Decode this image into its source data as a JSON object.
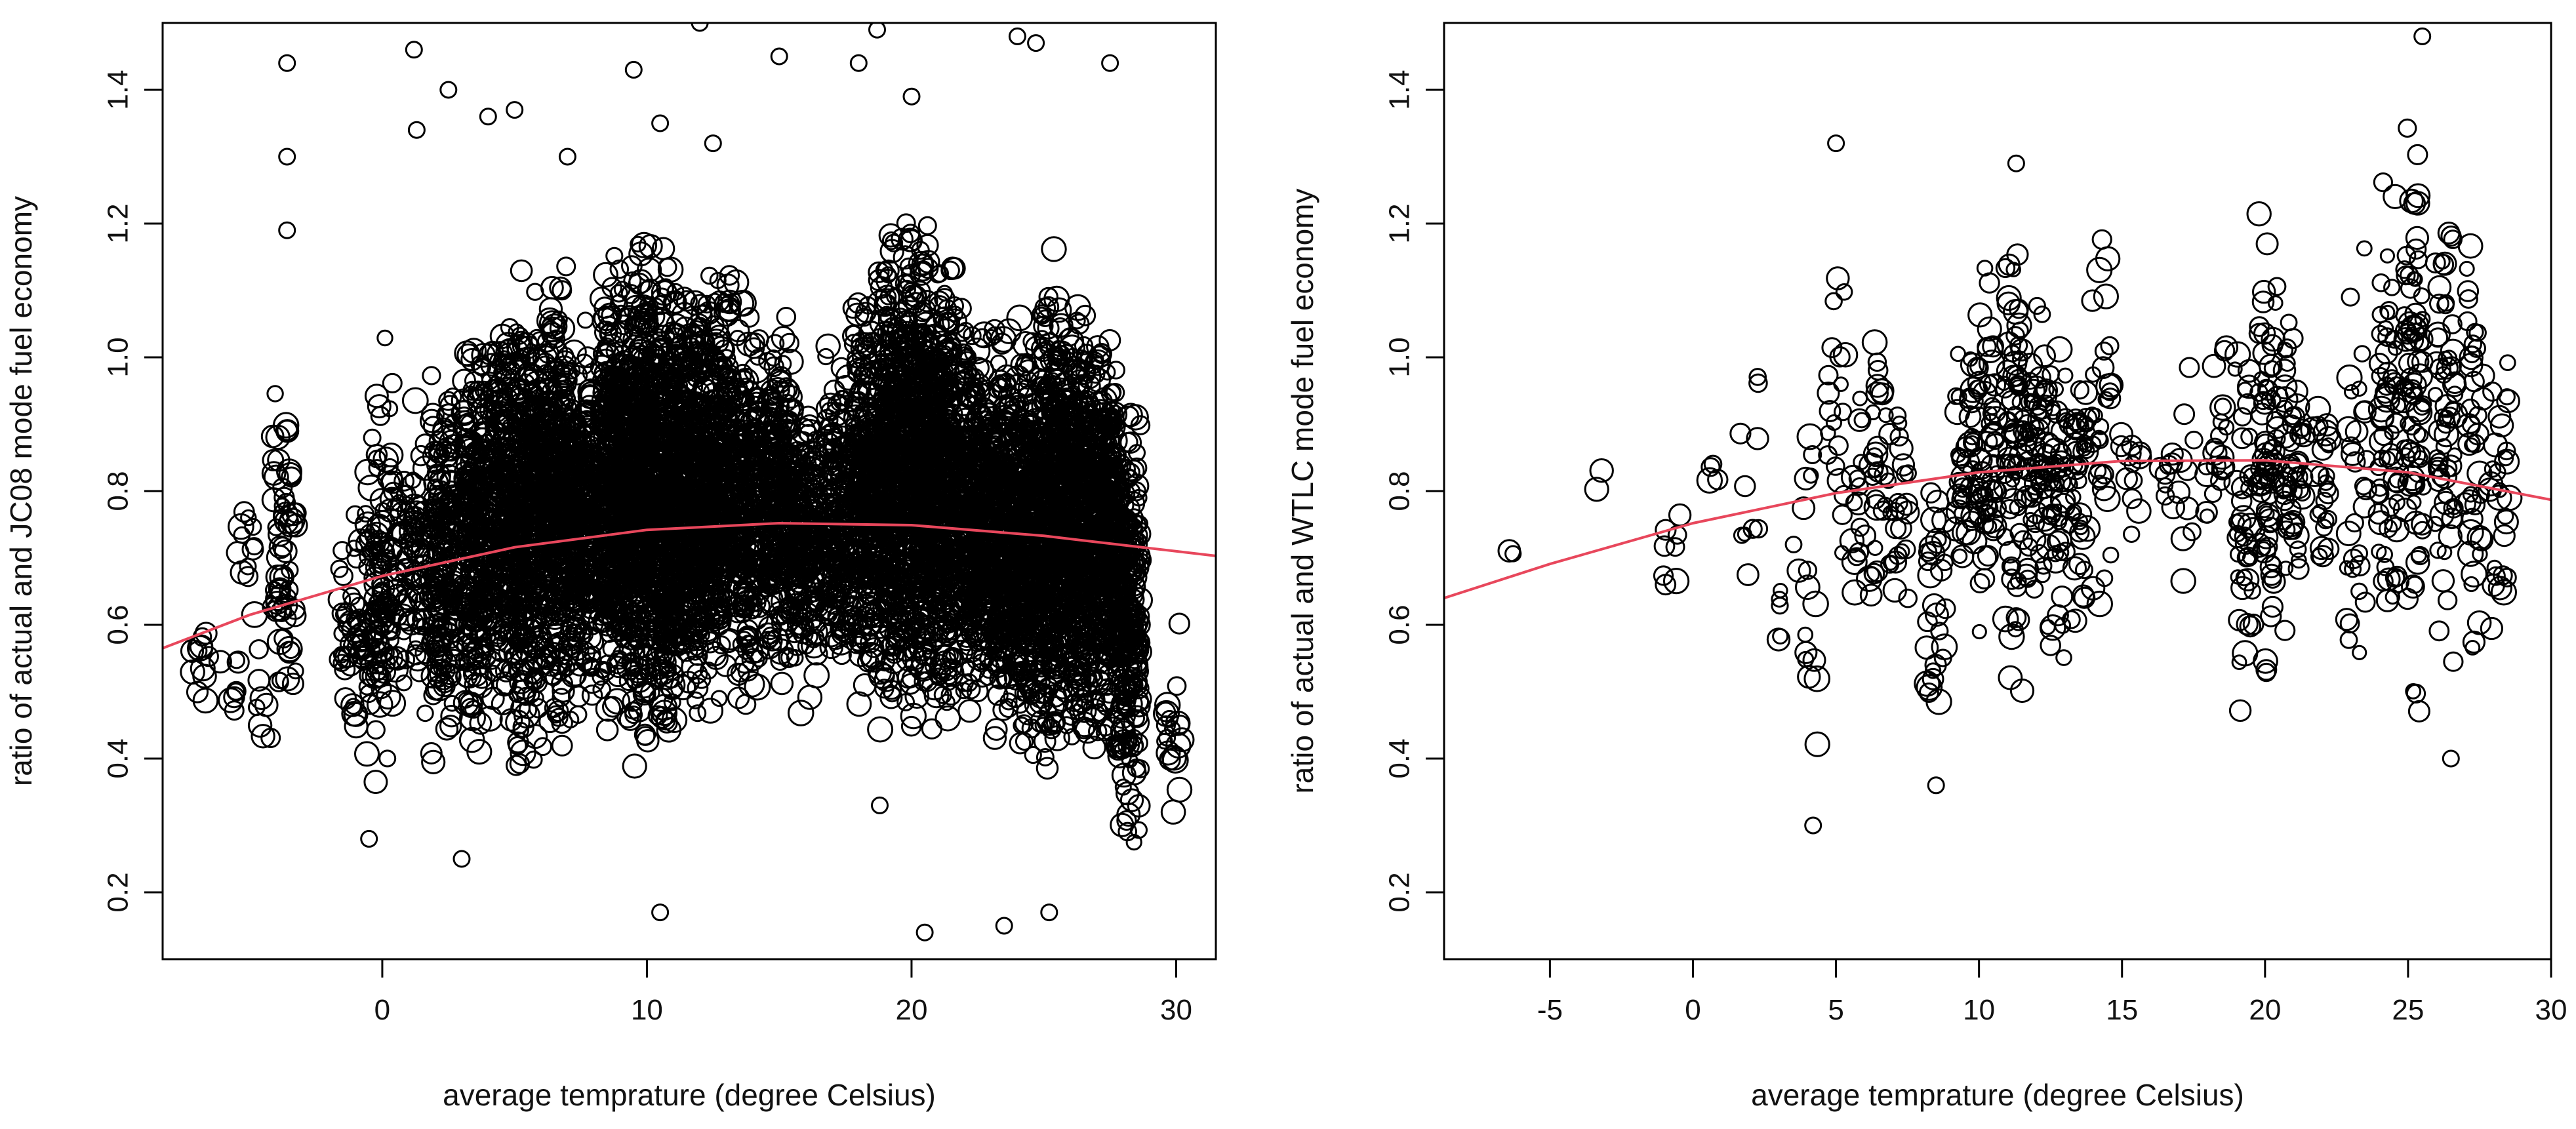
{
  "chart_data": [
    {
      "type": "scatter",
      "title": "",
      "xlabel": "average temprature (degree Celsius)",
      "ylabel": "ratio of actual and JC08 mode fuel economy",
      "xlim": [
        -8.3,
        31.5
      ],
      "ylim": [
        0.1,
        1.5
      ],
      "xticks": [
        0,
        10,
        20,
        30
      ],
      "xtick_labels": [
        "0",
        "10",
        "20",
        "30"
      ],
      "yticks": [
        0.2,
        0.4,
        0.6,
        0.8,
        1.0,
        1.2,
        1.4
      ],
      "ytick_labels": [
        "0.2",
        "0.4",
        "0.6",
        "0.8",
        "1.0",
        "1.2",
        "1.4"
      ],
      "grid": false,
      "legend": "none",
      "point_style": "open circles, size proportional to weight",
      "point_color": "#000000",
      "line_color": "#e8475c",
      "point_clusters": [
        {
          "x": -6.8,
          "y_range": [
            0.45,
            0.64
          ],
          "n": 12
        },
        {
          "x": -5.8,
          "y_range": [
            0.38,
            0.62
          ],
          "n": 8
        },
        {
          "x": -5.2,
          "y_range": [
            0.45,
            0.96
          ],
          "n": 12
        },
        {
          "x": -4.3,
          "y_range": [
            0.38,
            0.65
          ],
          "n": 10
        },
        {
          "x": -3.7,
          "y_range": [
            0.38,
            1.05
          ],
          "n": 60
        },
        {
          "x": -1.2,
          "y_range": [
            0.28,
            0.82
          ],
          "n": 40
        },
        {
          "x": -0.3,
          "y_range": [
            0.3,
            0.95
          ],
          "n": 60
        },
        {
          "x": 0.2,
          "y_range": [
            0.3,
            1.12
          ],
          "n": 80
        },
        {
          "x": 1.2,
          "y_range": [
            0.4,
            1.0
          ],
          "n": 80
        },
        {
          "x": 2.3,
          "y_range": [
            0.35,
            1.05
          ],
          "n": 200
        },
        {
          "x": 3.5,
          "y_range": [
            0.35,
            1.1
          ],
          "n": 260
        },
        {
          "x": 4.5,
          "y_range": [
            0.4,
            1.15
          ],
          "n": 260
        },
        {
          "x": 5.5,
          "y_range": [
            0.3,
            1.2
          ],
          "n": 340
        },
        {
          "x": 6.5,
          "y_range": [
            0.35,
            1.2
          ],
          "n": 340
        },
        {
          "x": 7.5,
          "y_range": [
            0.4,
            1.1
          ],
          "n": 300
        },
        {
          "x": 8.7,
          "y_range": [
            0.4,
            1.2
          ],
          "n": 420
        },
        {
          "x": 9.7,
          "y_range": [
            0.35,
            1.25
          ],
          "n": 460
        },
        {
          "x": 10.7,
          "y_range": [
            0.35,
            1.25
          ],
          "n": 460
        },
        {
          "x": 11.7,
          "y_range": [
            0.4,
            1.2
          ],
          "n": 380
        },
        {
          "x": 12.7,
          "y_range": [
            0.4,
            1.2
          ],
          "n": 340
        },
        {
          "x": 13.8,
          "y_range": [
            0.42,
            1.15
          ],
          "n": 280
        },
        {
          "x": 15.0,
          "y_range": [
            0.45,
            1.1
          ],
          "n": 260
        },
        {
          "x": 16.0,
          "y_range": [
            0.45,
            1.0
          ],
          "n": 200
        },
        {
          "x": 17.2,
          "y_range": [
            0.45,
            1.05
          ],
          "n": 200
        },
        {
          "x": 18.2,
          "y_range": [
            0.42,
            1.2
          ],
          "n": 320
        },
        {
          "x": 19.2,
          "y_range": [
            0.4,
            1.25
          ],
          "n": 380
        },
        {
          "x": 20.2,
          "y_range": [
            0.35,
            1.3
          ],
          "n": 460
        },
        {
          "x": 21.2,
          "y_range": [
            0.38,
            1.2
          ],
          "n": 400
        },
        {
          "x": 22.3,
          "y_range": [
            0.4,
            1.15
          ],
          "n": 340
        },
        {
          "x": 23.3,
          "y_range": [
            0.38,
            1.1
          ],
          "n": 340
        },
        {
          "x": 24.3,
          "y_range": [
            0.35,
            1.1
          ],
          "n": 380
        },
        {
          "x": 25.3,
          "y_range": [
            0.32,
            1.2
          ],
          "n": 420
        },
        {
          "x": 26.3,
          "y_range": [
            0.35,
            1.15
          ],
          "n": 400
        },
        {
          "x": 27.3,
          "y_range": [
            0.35,
            1.1
          ],
          "n": 380
        },
        {
          "x": 28.2,
          "y_range": [
            0.22,
            1.0
          ],
          "n": 260
        },
        {
          "x": 29.8,
          "y_range": [
            0.22,
            0.66
          ],
          "n": 20
        }
      ],
      "outliers": [
        {
          "x": -3.6,
          "y": 1.44
        },
        {
          "x": -3.6,
          "y": 1.3
        },
        {
          "x": -3.6,
          "y": 1.19
        },
        {
          "x": 1.2,
          "y": 1.46
        },
        {
          "x": 1.3,
          "y": 1.34
        },
        {
          "x": 2.5,
          "y": 1.4
        },
        {
          "x": 4.0,
          "y": 1.36
        },
        {
          "x": 5.0,
          "y": 1.37
        },
        {
          "x": 7.0,
          "y": 1.3
        },
        {
          "x": 9.5,
          "y": 1.43
        },
        {
          "x": 10.5,
          "y": 1.35
        },
        {
          "x": 12.0,
          "y": 1.5
        },
        {
          "x": 12.5,
          "y": 1.32
        },
        {
          "x": 15.0,
          "y": 1.45
        },
        {
          "x": 18.0,
          "y": 1.44
        },
        {
          "x": 18.7,
          "y": 1.49
        },
        {
          "x": 20.0,
          "y": 1.39
        },
        {
          "x": 24.0,
          "y": 1.48
        },
        {
          "x": 24.7,
          "y": 1.47
        },
        {
          "x": 27.5,
          "y": 1.44
        },
        {
          "x": 10.5,
          "y": 0.17
        },
        {
          "x": 20.5,
          "y": 0.14
        },
        {
          "x": 23.5,
          "y": 0.15
        },
        {
          "x": 25.2,
          "y": 0.17
        },
        {
          "x": -0.5,
          "y": 0.28
        },
        {
          "x": 3.0,
          "y": 0.25
        },
        {
          "x": 18.8,
          "y": 0.33
        }
      ],
      "trend_line": {
        "label": "",
        "x": [
          -8.3,
          -5,
          0,
          5,
          10,
          15,
          20,
          25,
          31.5
        ],
        "y": [
          0.565,
          0.615,
          0.673,
          0.716,
          0.742,
          0.752,
          0.749,
          0.733,
          0.703
        ]
      }
    },
    {
      "type": "scatter",
      "title": "",
      "xlabel": "average temprature (degree Celsius)",
      "ylabel": "ratio of actual and WTLC mode fuel economy",
      "xlim": [
        -8.7,
        30.0
      ],
      "ylim": [
        0.1,
        1.5
      ],
      "xticks": [
        -5,
        0,
        5,
        10,
        15,
        20,
        25,
        30
      ],
      "xtick_labels": [
        "-5",
        "0",
        "5",
        "10",
        "15",
        "20",
        "25",
        "30"
      ],
      "yticks": [
        0.2,
        0.4,
        0.6,
        0.8,
        1.0,
        1.2,
        1.4
      ],
      "ytick_labels": [
        "0.2",
        "0.4",
        "0.6",
        "0.8",
        "1.0",
        "1.2",
        "1.4"
      ],
      "grid": false,
      "legend": "none",
      "point_style": "open circles, size proportional to weight",
      "point_color": "#000000",
      "line_color": "#e8475c",
      "point_clusters": [
        {
          "x": -6.5,
          "y_range": [
            0.7,
            0.72
          ],
          "n": 2
        },
        {
          "x": -3.5,
          "y_range": [
            0.79,
            0.85
          ],
          "n": 2
        },
        {
          "x": -0.7,
          "y_range": [
            0.45,
            0.83
          ],
          "n": 8
        },
        {
          "x": 0.7,
          "y_range": [
            0.79,
            0.86
          ],
          "n": 4
        },
        {
          "x": 2.0,
          "y_range": [
            0.55,
            1.12
          ],
          "n": 10
        },
        {
          "x": 3.2,
          "y_range": [
            0.48,
            0.8
          ],
          "n": 6
        },
        {
          "x": 4.0,
          "y_range": [
            0.3,
            0.99
          ],
          "n": 16
        },
        {
          "x": 5.0,
          "y_range": [
            0.6,
            1.32
          ],
          "n": 20
        },
        {
          "x": 5.8,
          "y_range": [
            0.55,
            1.0
          ],
          "n": 16
        },
        {
          "x": 6.5,
          "y_range": [
            0.48,
            1.18
          ],
          "n": 28
        },
        {
          "x": 7.2,
          "y_range": [
            0.5,
            1.05
          ],
          "n": 24
        },
        {
          "x": 8.5,
          "y_range": [
            0.36,
            0.95
          ],
          "n": 28
        },
        {
          "x": 9.5,
          "y_range": [
            0.55,
            1.1
          ],
          "n": 40
        },
        {
          "x": 10.3,
          "y_range": [
            0.5,
            1.2
          ],
          "n": 60
        },
        {
          "x": 11.2,
          "y_range": [
            0.4,
            1.29
          ],
          "n": 70
        },
        {
          "x": 12.0,
          "y_range": [
            0.5,
            1.15
          ],
          "n": 60
        },
        {
          "x": 12.7,
          "y_range": [
            0.42,
            1.12
          ],
          "n": 50
        },
        {
          "x": 13.5,
          "y_range": [
            0.55,
            1.05
          ],
          "n": 40
        },
        {
          "x": 14.3,
          "y_range": [
            0.55,
            1.26
          ],
          "n": 30
        },
        {
          "x": 15.3,
          "y_range": [
            0.7,
            0.95
          ],
          "n": 12
        },
        {
          "x": 16.5,
          "y_range": [
            0.75,
            0.9
          ],
          "n": 8
        },
        {
          "x": 17.2,
          "y_range": [
            0.5,
            1.2
          ],
          "n": 10
        },
        {
          "x": 18.3,
          "y_range": [
            0.65,
            1.1
          ],
          "n": 20
        },
        {
          "x": 19.3,
          "y_range": [
            0.39,
            1.15
          ],
          "n": 40
        },
        {
          "x": 20.1,
          "y_range": [
            0.45,
            1.26
          ],
          "n": 70
        },
        {
          "x": 21.0,
          "y_range": [
            0.5,
            1.2
          ],
          "n": 50
        },
        {
          "x": 22.0,
          "y_range": [
            0.6,
            1.0
          ],
          "n": 24
        },
        {
          "x": 23.2,
          "y_range": [
            0.45,
            1.27
          ],
          "n": 30
        },
        {
          "x": 24.3,
          "y_range": [
            0.44,
            1.3
          ],
          "n": 60
        },
        {
          "x": 25.2,
          "y_range": [
            0.43,
            1.48
          ],
          "n": 80
        },
        {
          "x": 26.3,
          "y_range": [
            0.45,
            1.35
          ],
          "n": 60
        },
        {
          "x": 27.3,
          "y_range": [
            0.45,
            1.25
          ],
          "n": 40
        },
        {
          "x": 28.2,
          "y_range": [
            0.52,
            1.1
          ],
          "n": 28
        }
      ],
      "outliers": [
        {
          "x": 25.5,
          "y": 1.48
        },
        {
          "x": 5.0,
          "y": 1.32
        },
        {
          "x": 11.3,
          "y": 1.29
        },
        {
          "x": 4.2,
          "y": 0.3
        },
        {
          "x": 8.5,
          "y": 0.36
        },
        {
          "x": 26.5,
          "y": 0.4
        }
      ],
      "trend_line": {
        "label": "",
        "x": [
          -8.7,
          -5,
          0,
          5,
          10,
          15,
          20,
          25,
          30
        ],
        "y": [
          0.64,
          0.691,
          0.752,
          0.797,
          0.828,
          0.845,
          0.846,
          0.828,
          0.787
        ]
      }
    }
  ]
}
